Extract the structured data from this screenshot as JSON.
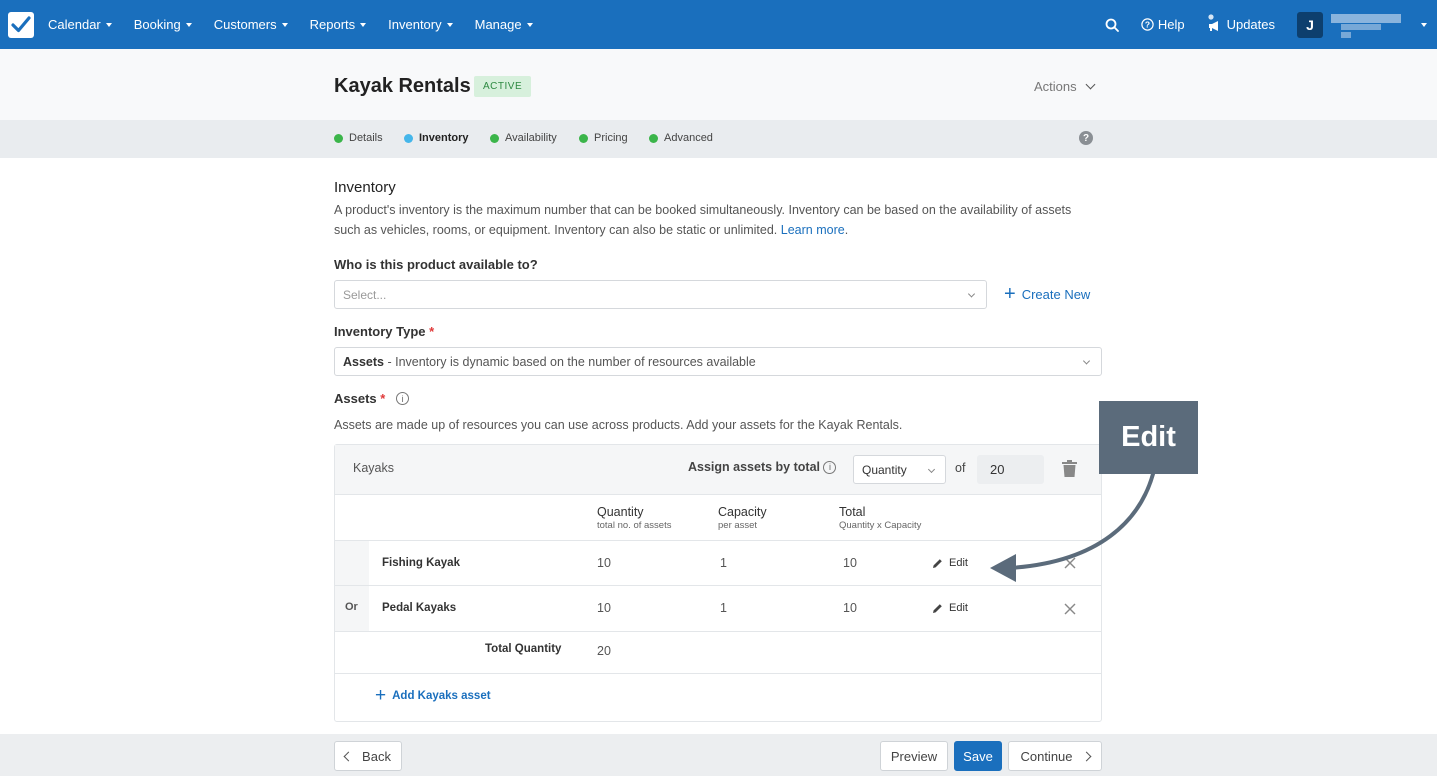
{
  "nav": {
    "items": [
      "Calendar",
      "Booking",
      "Customers",
      "Reports",
      "Inventory",
      "Manage"
    ],
    "help": "Help",
    "updates": "Updates",
    "avatar_initial": "J"
  },
  "header": {
    "title": "Kayak Rentals",
    "status": "ACTIVE",
    "actions": "Actions"
  },
  "steps": [
    {
      "label": "Details",
      "color": "#3bb54a"
    },
    {
      "label": "Inventory",
      "color": "#45b6ea"
    },
    {
      "label": "Availability",
      "color": "#3bb54a"
    },
    {
      "label": "Pricing",
      "color": "#3bb54a"
    },
    {
      "label": "Advanced",
      "color": "#3bb54a"
    }
  ],
  "inventory": {
    "heading": "Inventory",
    "description": "A product's inventory is the maximum number that can be booked simultaneously. Inventory can be based on the availability of assets such as vehicles, rooms, or equipment. Inventory can also be static or unlimited.",
    "learn_more": "Learn more",
    "available_to_label": "Who is this product available to?",
    "available_to_placeholder": "Select...",
    "create_new": "Create New",
    "type_label": "Inventory Type",
    "type_value_bold": "Assets",
    "type_value_rest": " - Inventory is dynamic based on the number of resources available",
    "assets_label": "Assets",
    "assets_description": "Assets are made up of resources you can use across products. Add your assets for the Kayak Rentals."
  },
  "assets_panel": {
    "group_name": "Kayaks",
    "assign_label": "Assign assets by total",
    "assign_mode": "Quantity",
    "of_label": "of",
    "total_value": "20",
    "columns": [
      {
        "title": "Quantity",
        "sub": "total no. of assets"
      },
      {
        "title": "Capacity",
        "sub": "per asset"
      },
      {
        "title": "Total",
        "sub": "Quantity x Capacity"
      }
    ],
    "rows": [
      {
        "prefix": "",
        "name": "Fishing Kayak",
        "quantity": "10",
        "capacity": "1",
        "total": "10",
        "edit": "Edit"
      },
      {
        "prefix": "Or",
        "name": "Pedal Kayaks",
        "quantity": "10",
        "capacity": "1",
        "total": "10",
        "edit": "Edit"
      }
    ],
    "total_quantity_label": "Total Quantity",
    "total_quantity_value": "20",
    "add_asset": "Add Kayaks asset"
  },
  "footer": {
    "back": "Back",
    "preview": "Preview",
    "save": "Save",
    "continue": "Continue"
  },
  "annotation": {
    "label": "Edit"
  }
}
